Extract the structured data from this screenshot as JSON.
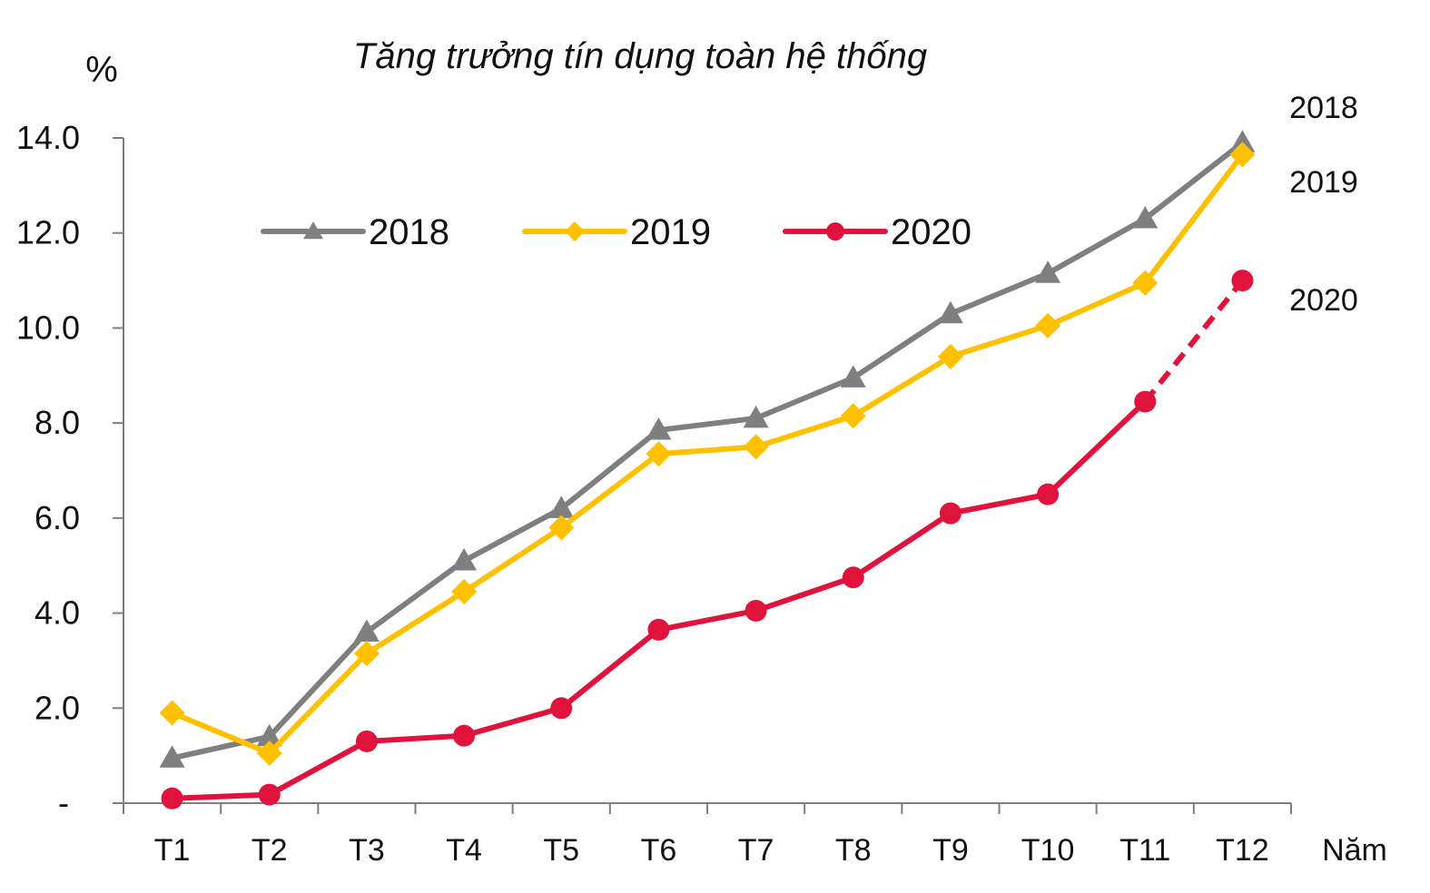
{
  "chart_data": {
    "type": "line",
    "title": "Tăng trưởng tín dụng toàn hệ thống",
    "ylabel": "%",
    "xlabel": "Năm",
    "categories": [
      "T1",
      "T2",
      "T3",
      "T4",
      "T5",
      "T6",
      "T7",
      "T8",
      "T9",
      "T10",
      "T11",
      "T12"
    ],
    "ylim": [
      0,
      14
    ],
    "yticks": [
      {
        "value": 0,
        "label": "-"
      },
      {
        "value": 2,
        "label": "2.0"
      },
      {
        "value": 4,
        "label": "4.0"
      },
      {
        "value": 6,
        "label": "6.0"
      },
      {
        "value": 8,
        "label": "8.0"
      },
      {
        "value": 10,
        "label": "10.0"
      },
      {
        "value": 12,
        "label": "12.0"
      },
      {
        "value": 14,
        "label": "14.0"
      }
    ],
    "grid": false,
    "legend_position": "top-left",
    "series": [
      {
        "name": "2018",
        "color": "#7f7f7f",
        "marker": "triangle",
        "values": [
          0.95,
          1.4,
          3.6,
          5.1,
          6.2,
          7.85,
          8.1,
          8.95,
          10.3,
          11.15,
          12.3,
          13.9
        ],
        "end_label": "2018"
      },
      {
        "name": "2019",
        "color": "#ffc000",
        "marker": "diamond",
        "values": [
          1.9,
          1.05,
          3.15,
          4.45,
          5.8,
          7.35,
          7.5,
          8.15,
          9.4,
          10.05,
          10.95,
          13.65
        ],
        "end_label": "2019"
      },
      {
        "name": "2020",
        "color": "#e0133c",
        "marker": "circle",
        "values": [
          0.1,
          0.18,
          1.3,
          1.42,
          2.0,
          3.65,
          4.05,
          4.75,
          6.1,
          6.5,
          8.45,
          11.0
        ],
        "dashed_last_segment": true,
        "end_label": "2020"
      }
    ]
  }
}
